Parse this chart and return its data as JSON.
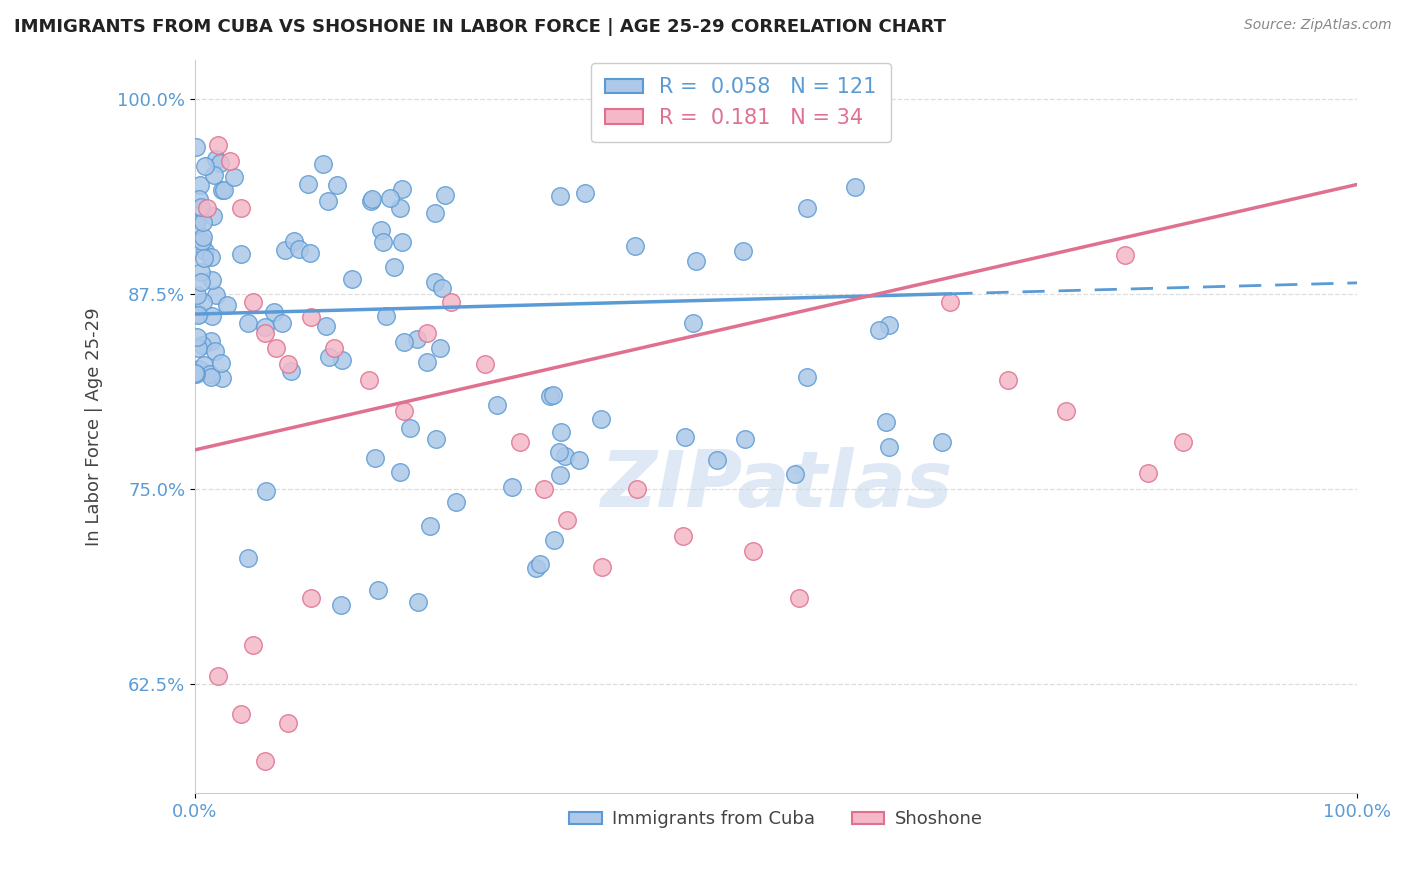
{
  "title": "IMMIGRANTS FROM CUBA VS SHOSHONE IN LABOR FORCE | AGE 25-29 CORRELATION CHART",
  "source": "Source: ZipAtlas.com",
  "ylabel": "In Labor Force | Age 25-29",
  "xlim": [
    0.0,
    1.0
  ],
  "ylim": [
    0.555,
    1.025
  ],
  "yticks": [
    0.625,
    0.75,
    0.875,
    1.0
  ],
  "ytick_labels": [
    "62.5%",
    "75.0%",
    "87.5%",
    "100.0%"
  ],
  "xticks": [
    0.0,
    1.0
  ],
  "xtick_labels": [
    "0.0%",
    "100.0%"
  ],
  "cuba_color": "#adc8e8",
  "cuba_edge_color": "#5b9bd5",
  "shoshone_color": "#f4b8c8",
  "shoshone_edge_color": "#e07090",
  "cuba_R": 0.058,
  "cuba_N": 121,
  "shoshone_R": 0.181,
  "shoshone_N": 34,
  "legend_label_cuba": "Immigrants from Cuba",
  "legend_label_shoshone": "Shoshone",
  "watermark": "ZIPatlas",
  "background_color": "#ffffff",
  "grid_color": "#dddddd",
  "tick_color": "#5b9bd5"
}
